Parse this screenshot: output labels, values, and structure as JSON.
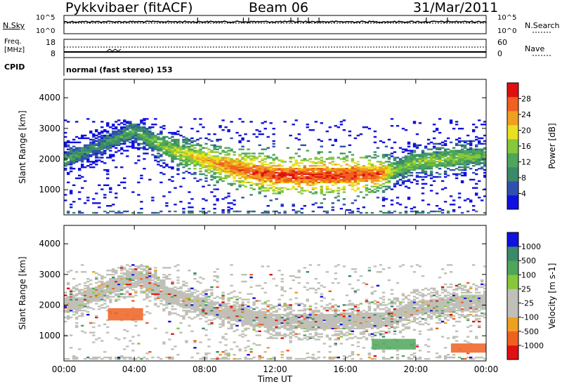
{
  "header": {
    "station": "Pykkvibaer (fitACF)",
    "beam": "Beam 06",
    "date": "31/Mar/2011"
  },
  "noise_panel": {
    "left_label": "N.Sky",
    "right_label": "N.Search",
    "left_ticks": [
      "10^5",
      "10^0"
    ],
    "right_ticks": [
      "10^5",
      "10^0"
    ]
  },
  "freq_panel": {
    "left_label_line1": "Freq.",
    "left_label_line2": "[MHz]",
    "right_label": "Nave",
    "left_ticks": [
      "18",
      "8"
    ],
    "right_ticks": [
      "60",
      "0"
    ]
  },
  "cpid": {
    "label": "CPID",
    "mode": "normal (fast stereo) 153"
  },
  "colors": {
    "power_scale": [
      "#1010e0",
      "#3050b0",
      "#3a8a6a",
      "#4ea65a",
      "#86c83a",
      "#e8e020",
      "#f0a020",
      "#f06020",
      "#e01010"
    ],
    "velocity_scale": [
      "#e01010",
      "#f06020",
      "#f0a020",
      "#c0c0b8",
      "#c0c0b8",
      "#86c83a",
      "#4ea65a",
      "#3a8a6a",
      "#1010e0"
    ]
  },
  "chart_data": [
    {
      "type": "heatmap",
      "panel": "power",
      "ylabel": "Slant Range [km]",
      "colorbar_label": "Power [dB]",
      "colorbar_ticks": [
        "4",
        "8",
        "12",
        "16",
        "20",
        "24",
        "28"
      ],
      "y_ticks": [
        "1000",
        "2000",
        "3000",
        "4000"
      ],
      "ylim": [
        180,
        4600
      ],
      "x_ticks": [
        "00:00",
        "04:00",
        "08:00",
        "12:00",
        "16:00",
        "20:00",
        "00:00"
      ],
      "xlim": [
        0,
        24
      ],
      "band": {
        "x": [
          0,
          2,
          4,
          6,
          8,
          10,
          12,
          14,
          16,
          18,
          19,
          20,
          22,
          24
        ],
        "center_km": [
          1950,
          2400,
          2900,
          2300,
          1950,
          1650,
          1450,
          1450,
          1450,
          1500,
          1650,
          1900,
          2000,
          2100
        ],
        "peak_db": [
          14,
          12,
          14,
          18,
          24,
          28,
          30,
          30,
          30,
          28,
          16,
          18,
          18,
          16
        ]
      },
      "outer_echo_limit_km": 3300
    },
    {
      "type": "heatmap",
      "panel": "velocity",
      "ylabel": "Slant Range [km]",
      "colorbar_label": "Velocity [m s-1]",
      "colorbar_ticks": [
        "-1000",
        "-500",
        "-100",
        "-25",
        "25",
        "100",
        "500",
        "1000"
      ],
      "y_ticks": [
        "1000",
        "2000",
        "3000",
        "4000"
      ],
      "ylim": [
        180,
        4600
      ],
      "x_ticks": [
        "00:00",
        "04:00",
        "08:00",
        "12:00",
        "16:00",
        "20:00",
        "00:00"
      ],
      "xlim": [
        0,
        24
      ],
      "xlabel": "Time UT",
      "band": {
        "x": [
          0,
          2,
          4,
          6,
          8,
          10,
          12,
          14,
          16,
          18,
          19,
          20,
          22,
          24
        ],
        "center_km": [
          1950,
          2400,
          2900,
          2300,
          1950,
          1650,
          1450,
          1450,
          1450,
          1500,
          1650,
          1900,
          2000,
          2100
        ]
      },
      "features": [
        {
          "label": "negative streaks",
          "x": [
            2.5,
            4.5
          ],
          "km": [
            1500,
            1900
          ],
          "velocity": -500
        },
        {
          "label": "positive patch",
          "x": [
            17.5,
            20.0
          ],
          "km": [
            550,
            900
          ],
          "velocity": 100
        },
        {
          "label": "negative patch",
          "x": [
            22.0,
            24.0
          ],
          "km": [
            450,
            750
          ],
          "velocity": -500
        }
      ]
    }
  ]
}
